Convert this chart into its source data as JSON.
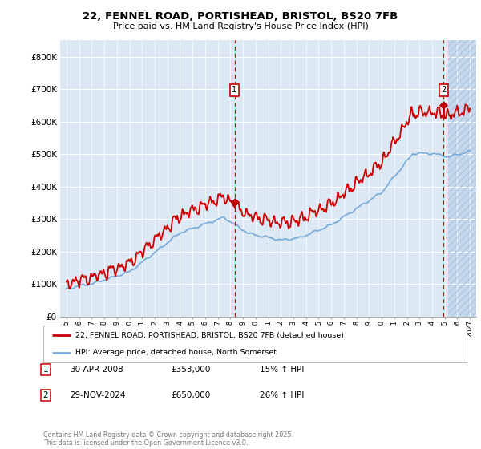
{
  "title_line1": "22, FENNEL ROAD, PORTISHEAD, BRISTOL, BS20 7FB",
  "title_line2": "Price paid vs. HM Land Registry's House Price Index (HPI)",
  "background_color": "#ffffff",
  "plot_bg_color": "#dce9f5",
  "hatch_color": "#c5d8ec",
  "grid_color": "#ffffff",
  "red_line_color": "#cc0000",
  "blue_line_color": "#7aaddb",
  "ylim": [
    0,
    850000
  ],
  "yticks": [
    0,
    100000,
    200000,
    300000,
    400000,
    500000,
    600000,
    700000,
    800000
  ],
  "ytick_labels": [
    "£0",
    "£100K",
    "£200K",
    "£300K",
    "£400K",
    "£500K",
    "£600K",
    "£700K",
    "£800K"
  ],
  "sale1_date_x": 2008.33,
  "sale1_price": 353000,
  "sale2_date_x": 2024.92,
  "sale2_price": 650000,
  "legend_line1": "22, FENNEL ROAD, PORTISHEAD, BRISTOL, BS20 7FB (detached house)",
  "legend_line2": "HPI: Average price, detached house, North Somerset",
  "annotation1_date": "30-APR-2008",
  "annotation1_price": "£353,000",
  "annotation1_hpi": "15% ↑ HPI",
  "annotation2_date": "29-NOV-2024",
  "annotation2_price": "£650,000",
  "annotation2_hpi": "26% ↑ HPI",
  "copyright_text": "Contains HM Land Registry data © Crown copyright and database right 2025.\nThis data is licensed under the Open Government Licence v3.0.",
  "xmin": 1994.5,
  "xmax": 2027.5,
  "hatch_start": 2025.3
}
